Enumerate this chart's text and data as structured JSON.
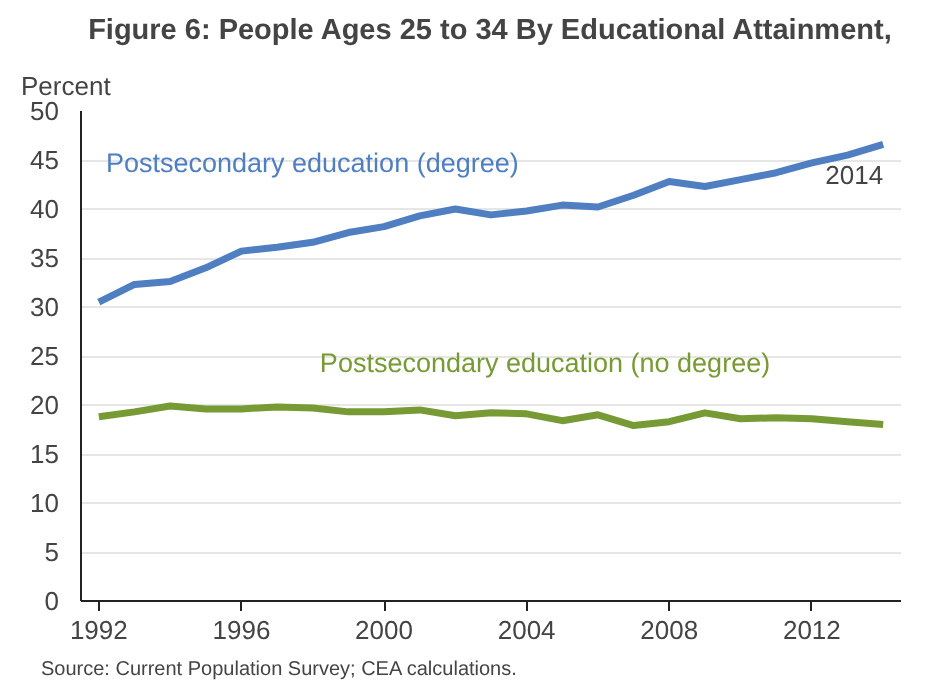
{
  "chart_data": {
    "type": "line",
    "title": "Figure 6: People Ages 25 to 34 By Educational Attainment,",
    "ylabel": "Percent",
    "x": [
      1992,
      1993,
      1994,
      1995,
      1996,
      1997,
      1998,
      1999,
      2000,
      2001,
      2002,
      2003,
      2004,
      2005,
      2006,
      2007,
      2008,
      2009,
      2010,
      2011,
      2012,
      2013,
      2014
    ],
    "series": [
      {
        "name": "Postsecondary education (degree)",
        "color": "#4f7ec1",
        "values": [
          30.5,
          32.3,
          32.6,
          34,
          35.7,
          36.1,
          36.6,
          37.6,
          38.2,
          39.3,
          40,
          39.4,
          39.8,
          40.4,
          40.2,
          41.4,
          42.8,
          42.3,
          43,
          43.7,
          44.7,
          45.5,
          46.6
        ]
      },
      {
        "name": "Postsecondary education (no degree)",
        "color": "#789a34",
        "values": [
          18.8,
          19.3,
          19.9,
          19.6,
          19.6,
          19.8,
          19.7,
          19.3,
          19.3,
          19.5,
          18.9,
          19.2,
          19.1,
          18.4,
          19.0,
          17.9,
          18.3,
          19.2,
          18.6,
          18.7,
          18.6,
          18.3,
          18.0
        ]
      }
    ],
    "xlim": [
      1991.5,
      2014.5
    ],
    "xticks": [
      1992,
      1996,
      2000,
      2004,
      2008,
      2012
    ],
    "ylim": [
      0,
      50
    ],
    "yticks": [
      0,
      5,
      10,
      15,
      20,
      25,
      30,
      35,
      40,
      45,
      50
    ],
    "grid": "y",
    "legend": false,
    "marker": "none",
    "line_style": "solid",
    "annotations": [
      {
        "text": "2014",
        "x": 2014,
        "y": 46.6
      },
      "Source: Current Population Survey; CEA calculations."
    ]
  }
}
